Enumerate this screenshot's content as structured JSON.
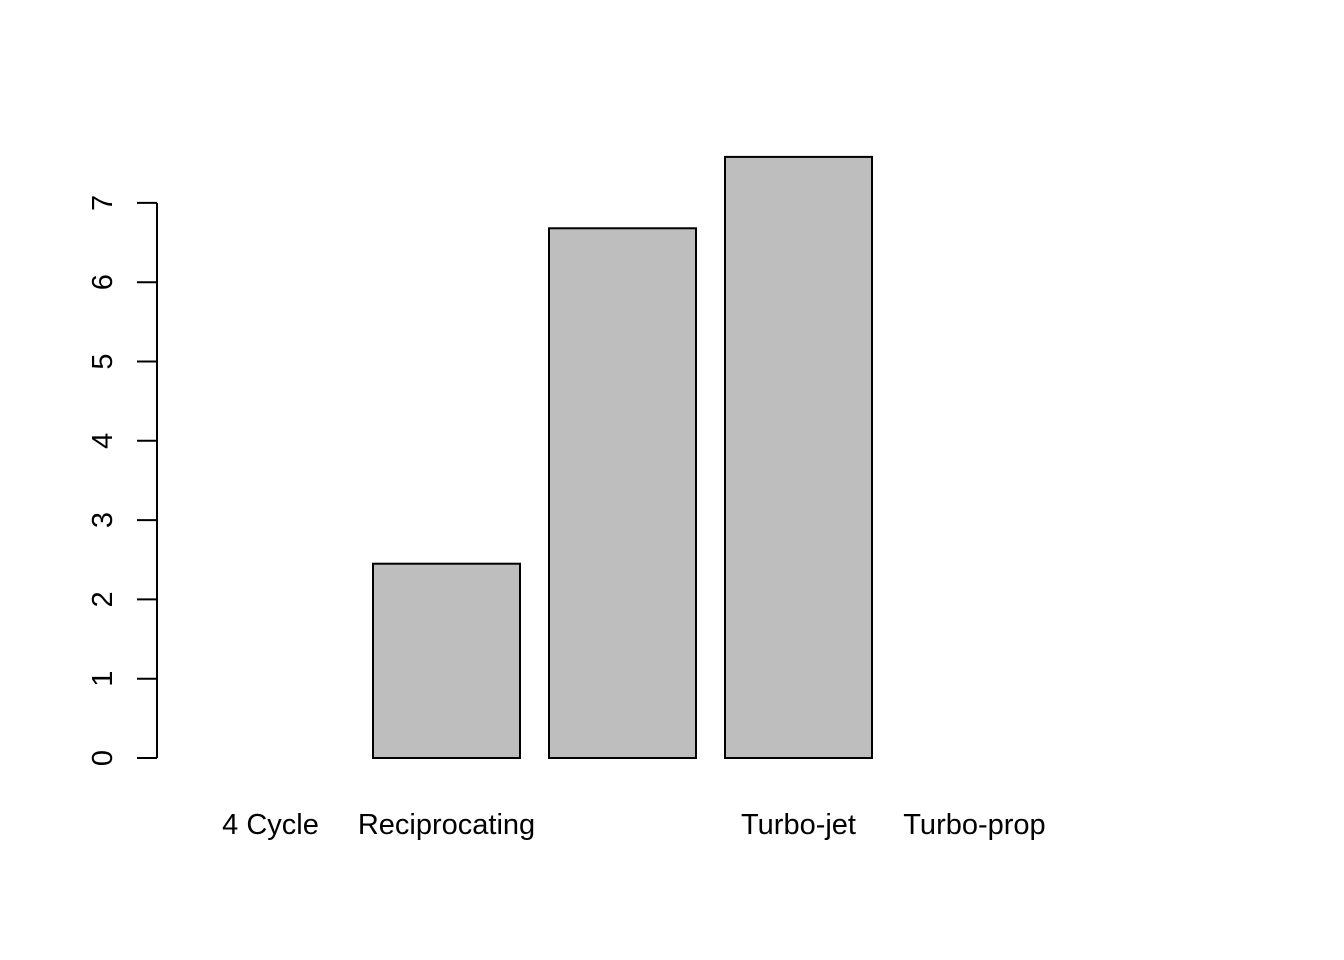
{
  "chart_data": {
    "type": "bar",
    "title": "",
    "xlabel": "",
    "ylabel": "",
    "categories": [
      "4 Cycle",
      "Reciprocating",
      "",
      "Turbo-jet",
      "Turbo-prop"
    ],
    "values": [
      0,
      2.45,
      6.68,
      7.58,
      0
    ],
    "ylim": [
      0,
      7.58
    ],
    "yticks": [
      "0",
      "1",
      "2",
      "3",
      "4",
      "5",
      "6",
      "7"
    ],
    "bar_fill": "#bebebe",
    "bar_border": "#000000",
    "grid": false,
    "legend": "none"
  }
}
